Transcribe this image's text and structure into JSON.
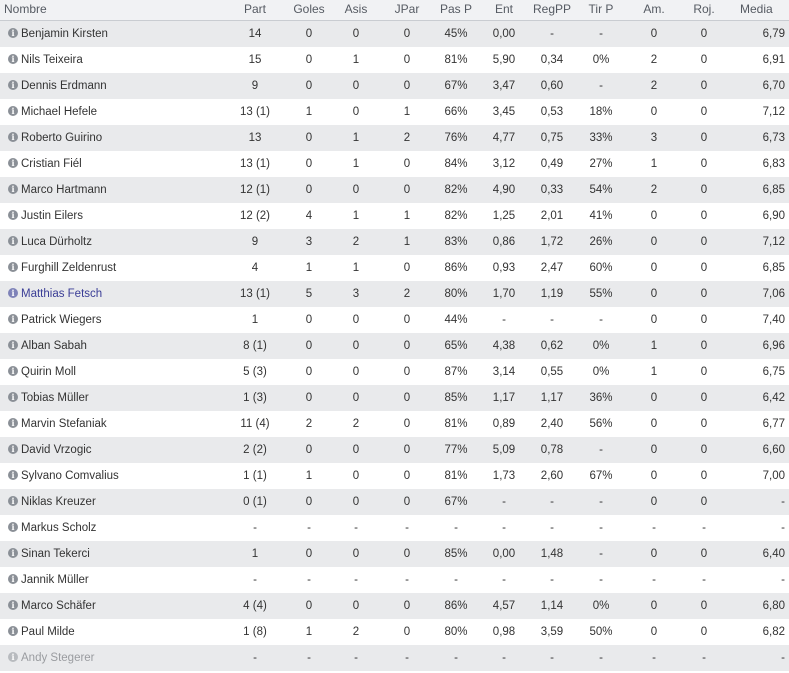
{
  "columns": [
    "Nombre",
    "Part",
    "Goles",
    "Asis",
    "JPar",
    "Pas P",
    "Ent",
    "RegPP",
    "Tir P",
    "Am.",
    "Roj.",
    "Media"
  ],
  "info_glyph": "i",
  "players": [
    [
      "Benjamin Kirsten",
      "14",
      "0",
      "0",
      "0",
      "45%",
      "0,00",
      "-",
      "-",
      "0",
      "0",
      "6,79"
    ],
    [
      "Nils Teixeira",
      "15",
      "0",
      "1",
      "0",
      "81%",
      "5,90",
      "0,34",
      "0%",
      "2",
      "0",
      "6,91"
    ],
    [
      "Dennis Erdmann",
      "9",
      "0",
      "0",
      "0",
      "67%",
      "3,47",
      "0,60",
      "-",
      "2",
      "0",
      "6,70"
    ],
    [
      "Michael Hefele",
      "13 (1)",
      "1",
      "0",
      "1",
      "66%",
      "3,45",
      "0,53",
      "18%",
      "0",
      "0",
      "7,12"
    ],
    [
      "Roberto Guirino",
      "13",
      "0",
      "1",
      "2",
      "76%",
      "4,77",
      "0,75",
      "33%",
      "3",
      "0",
      "6,73"
    ],
    [
      "Cristian Fiél",
      "13 (1)",
      "0",
      "1",
      "0",
      "84%",
      "3,12",
      "0,49",
      "27%",
      "1",
      "0",
      "6,83"
    ],
    [
      "Marco Hartmann",
      "12 (1)",
      "0",
      "0",
      "0",
      "82%",
      "4,90",
      "0,33",
      "54%",
      "2",
      "0",
      "6,85"
    ],
    [
      "Justin Eilers",
      "12 (2)",
      "4",
      "1",
      "1",
      "82%",
      "1,25",
      "2,01",
      "41%",
      "0",
      "0",
      "6,90"
    ],
    [
      "Luca Dürholtz",
      "9",
      "3",
      "2",
      "1",
      "83%",
      "0,86",
      "1,72",
      "26%",
      "0",
      "0",
      "7,12"
    ],
    [
      "Furghill Zeldenrust",
      "4",
      "1",
      "1",
      "0",
      "86%",
      "0,93",
      "2,47",
      "60%",
      "0",
      "0",
      "6,85"
    ],
    [
      "Matthias Fetsch",
      "13 (1)",
      "5",
      "3",
      "2",
      "80%",
      "1,70",
      "1,19",
      "55%",
      "0",
      "0",
      "7,06"
    ],
    [
      "Patrick Wiegers",
      "1",
      "0",
      "0",
      "0",
      "44%",
      "-",
      "-",
      "-",
      "0",
      "0",
      "7,40"
    ],
    [
      "Alban Sabah",
      "8 (1)",
      "0",
      "0",
      "0",
      "65%",
      "4,38",
      "0,62",
      "0%",
      "1",
      "0",
      "6,96"
    ],
    [
      "Quirin Moll",
      "5 (3)",
      "0",
      "0",
      "0",
      "87%",
      "3,14",
      "0,55",
      "0%",
      "1",
      "0",
      "6,75"
    ],
    [
      "Tobias Müller",
      "1 (3)",
      "0",
      "0",
      "0",
      "85%",
      "1,17",
      "1,17",
      "36%",
      "0",
      "0",
      "6,42"
    ],
    [
      "Marvin Stefaniak",
      "11 (4)",
      "2",
      "2",
      "0",
      "81%",
      "0,89",
      "2,40",
      "56%",
      "0",
      "0",
      "6,77"
    ],
    [
      "David Vrzogic",
      "2 (2)",
      "0",
      "0",
      "0",
      "77%",
      "5,09",
      "0,78",
      "-",
      "0",
      "0",
      "6,60"
    ],
    [
      "Sylvano Comvalius",
      "1 (1)",
      "1",
      "0",
      "0",
      "81%",
      "1,73",
      "2,60",
      "67%",
      "0",
      "0",
      "7,00"
    ],
    [
      "Niklas Kreuzer",
      "0 (1)",
      "0",
      "0",
      "0",
      "67%",
      "-",
      "-",
      "-",
      "0",
      "0",
      "-"
    ],
    [
      "Markus Scholz",
      "-",
      "-",
      "-",
      "-",
      "-",
      "-",
      "-",
      "-",
      "-",
      "-",
      "-"
    ],
    [
      "Sinan Tekerci",
      "1",
      "0",
      "0",
      "0",
      "85%",
      "0,00",
      "1,48",
      "-",
      "0",
      "0",
      "6,40"
    ],
    [
      "Jannik Müller",
      "-",
      "-",
      "-",
      "-",
      "-",
      "-",
      "-",
      "-",
      "-",
      "-",
      "-"
    ],
    [
      "Marco Schäfer",
      "4 (4)",
      "0",
      "0",
      "0",
      "86%",
      "4,57",
      "1,14",
      "0%",
      "0",
      "0",
      "6,80"
    ],
    [
      "Paul Milde",
      "1 (8)",
      "1",
      "2",
      "0",
      "80%",
      "0,98",
      "3,59",
      "50%",
      "0",
      "0",
      "6,82"
    ],
    [
      "Andy Stegerer",
      "-",
      "-",
      "-",
      "-",
      "-",
      "-",
      "-",
      "-",
      "-",
      "-",
      "-"
    ]
  ],
  "highlighted_player": "Matthias Fetsch",
  "dimmed_player": "Andy Stegerer",
  "colors": {
    "header_background": "#f1f2f4",
    "row_stripe": "#e9eaec",
    "highlight_text": "#3a3d96",
    "dimmed_text": "#9a9ca0",
    "info_icon": "#8a8f96"
  }
}
